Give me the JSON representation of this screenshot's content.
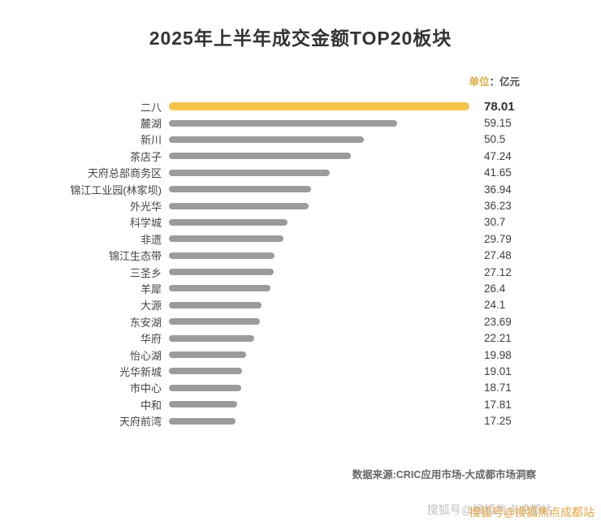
{
  "title": "2025年上半年成交金额TOP20板块",
  "unit": {
    "prefix": "单位",
    "suffix": "：亿元"
  },
  "source": "数据来源:CRIC应用市场-大成都市场洞察",
  "watermark": "搜狐号@搜狐焦点成都站",
  "colors": {
    "highlight_bar": "#F6C344",
    "bar": "#9B9B9B",
    "title": "#333333",
    "watermark": "#E8A33D"
  },
  "chart_data": {
    "type": "bar",
    "orientation": "horizontal",
    "title": "2025年上半年成交金额TOP20板块",
    "unit": "亿元",
    "categories": [
      "二八",
      "麓湖",
      "新川",
      "茶店子",
      "天府总部商务区",
      "锦江工业园(林家坝)",
      "外光华",
      "科学城",
      "非遗",
      "锦江生态带",
      "三圣乡",
      "羊犀",
      "大源",
      "东安湖",
      "华府",
      "怡心湖",
      "光华新城",
      "市中心",
      "中和",
      "天府前湾"
    ],
    "values": [
      78.01,
      59.15,
      50.5,
      47.24,
      41.65,
      36.94,
      36.23,
      30.7,
      29.79,
      27.48,
      27.12,
      26.4,
      24.1,
      23.69,
      22.21,
      19.98,
      19.01,
      18.71,
      17.81,
      17.25
    ],
    "highlight_index": 0,
    "xlim": [
      0,
      78.01
    ],
    "value_labels": true,
    "grid": false,
    "legend": false
  }
}
